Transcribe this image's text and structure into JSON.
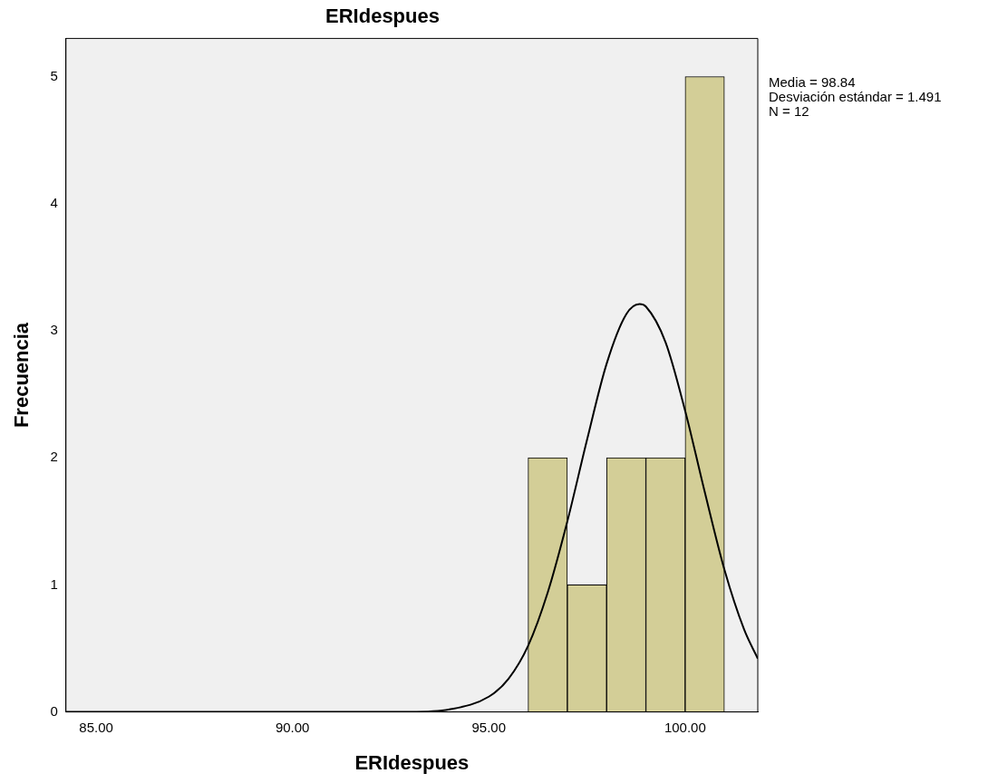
{
  "chart_data": {
    "type": "histogram",
    "title": "ERIdespues",
    "xlabel": "ERIdespues",
    "ylabel": "Frecuencia",
    "bins": [
      96,
      97,
      98,
      99,
      100,
      101
    ],
    "values": [
      2,
      1,
      2,
      2,
      5
    ],
    "color": "#d3ce97",
    "series": [
      {
        "type": "line",
        "color": "#000000",
        "x": [
          84.23,
          90,
          92,
          93,
          94,
          95,
          95.5,
          96,
          96.5,
          97,
          97.5,
          98,
          98.5,
          98.84,
          99,
          99.5,
          100,
          100.5,
          101,
          101.5,
          101.85
        ],
        "values": [
          0,
          0,
          0,
          0,
          0.02,
          0.12,
          0.26,
          0.52,
          0.94,
          1.5,
          2.14,
          2.74,
          3.13,
          3.21,
          3.19,
          2.91,
          2.37,
          1.73,
          1.12,
          0.65,
          0.42
        ]
      }
    ],
    "xlim": [
      84.23,
      101.85
    ],
    "xticks": [
      {
        "value": 85,
        "label": "85.00"
      },
      {
        "value": 90,
        "label": "90.00"
      },
      {
        "value": 95,
        "label": "95.00"
      },
      {
        "value": 100,
        "label": "100.00"
      }
    ],
    "ylim": [
      0,
      5.3
    ],
    "yticks": [
      0,
      1,
      2,
      3,
      4,
      5
    ],
    "annotations": [
      "Media = 98.84",
      "Desviación estándar = 1.491",
      "N = 12"
    ]
  }
}
